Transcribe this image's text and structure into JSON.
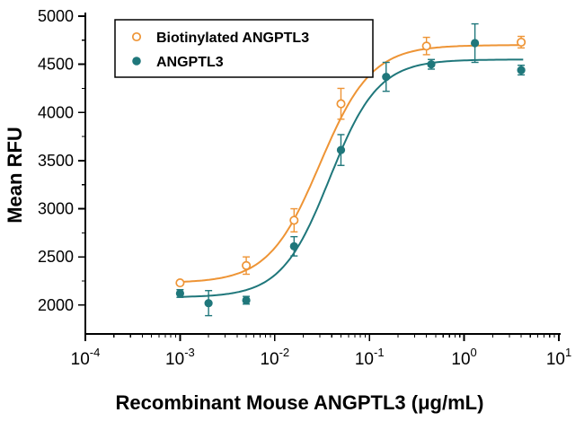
{
  "chart_data": {
    "type": "scatter",
    "title": "",
    "xlabel": "Recombinant Mouse ANGPTL3 (μg/mL)",
    "ylabel": "Mean RFU",
    "x_scale": "log",
    "xlim": [
      0.0001,
      10
    ],
    "ylim": [
      1700,
      5000
    ],
    "yticks": [
      2000,
      2500,
      3000,
      3500,
      4000,
      4500,
      5000
    ],
    "xticks": [
      0.0001,
      0.001,
      0.01,
      0.1,
      1,
      10
    ],
    "xtick_exponents": [
      -4,
      -3,
      -2,
      -1,
      0,
      1
    ],
    "grid": false,
    "legend_position": "top-left",
    "colors": {
      "biotinylated": "#EE9435",
      "angptl3": "#1F777B",
      "axis": "#000000",
      "background": "#ffffff"
    },
    "series": [
      {
        "name": "Biotinylated ANGPTL3",
        "color": "#EE9435",
        "marker": "open-circle",
        "points": [
          {
            "x": 0.001,
            "y": 2230,
            "err": 0
          },
          {
            "x": 0.005,
            "y": 2410,
            "err": 90
          },
          {
            "x": 0.016,
            "y": 2880,
            "err": 120
          },
          {
            "x": 0.05,
            "y": 4090,
            "err": 160
          },
          {
            "x": 0.4,
            "y": 4690,
            "err": 90
          },
          {
            "x": 4.0,
            "y": 4730,
            "err": 60
          }
        ],
        "fit": {
          "model": "4PL",
          "bottom": 2230,
          "top": 4700,
          "ec50": 0.03,
          "hill": 1.6,
          "xmin": 0.001,
          "xmax": 4.2
        }
      },
      {
        "name": "ANGPTL3",
        "color": "#1F777B",
        "marker": "filled-circle",
        "points": [
          {
            "x": 0.001,
            "y": 2120,
            "err": 40
          },
          {
            "x": 0.002,
            "y": 2020,
            "err": 130
          },
          {
            "x": 0.005,
            "y": 2050,
            "err": 40
          },
          {
            "x": 0.016,
            "y": 2610,
            "err": 100
          },
          {
            "x": 0.05,
            "y": 3610,
            "err": 160
          },
          {
            "x": 0.15,
            "y": 4370,
            "err": 150
          },
          {
            "x": 0.45,
            "y": 4500,
            "err": 50
          },
          {
            "x": 1.3,
            "y": 4720,
            "err": 200
          },
          {
            "x": 4.0,
            "y": 4440,
            "err": 50
          }
        ],
        "fit": {
          "model": "4PL",
          "bottom": 2080,
          "top": 4550,
          "ec50": 0.038,
          "hill": 1.7,
          "xmin": 0.001,
          "xmax": 4.2
        }
      }
    ]
  }
}
